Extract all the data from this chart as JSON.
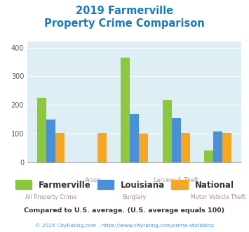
{
  "title_line1": "2019 Farmerville",
  "title_line2": "Property Crime Comparison",
  "categories": [
    "All Property Crime",
    "Arson",
    "Burglary",
    "Larceny & Theft",
    "Motor Vehicle Theft"
  ],
  "farmerville": [
    225,
    0,
    365,
    218,
    42
  ],
  "louisiana": [
    150,
    0,
    170,
    155,
    108
  ],
  "national": [
    102,
    103,
    101,
    102,
    102
  ],
  "color_farmerville": "#8dc63f",
  "color_louisiana": "#4a90d9",
  "color_national": "#f5a623",
  "title_color": "#1a7abf",
  "plot_bg": "#ddeef4",
  "ylim": [
    0,
    420
  ],
  "yticks": [
    0,
    100,
    200,
    300,
    400
  ],
  "footnote1": "Compared to U.S. average. (U.S. average equals 100)",
  "footnote2": "© 2025 CityRating.com - https://www.cityrating.com/crime-statistics/",
  "footnote1_color": "#333333",
  "footnote2_color": "#4a90d9",
  "xlabel_color": "#aa88aa",
  "legend_text_color": "#333333",
  "bar_width": 0.22
}
